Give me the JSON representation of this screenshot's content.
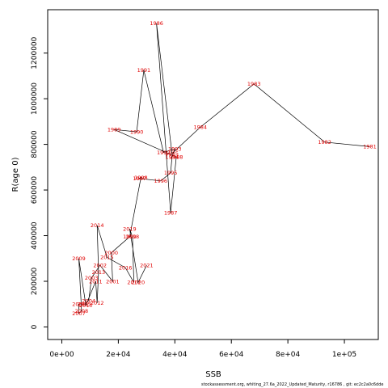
{
  "chart_data": {
    "type": "line",
    "xlabel": "SSB",
    "ylabel": "R(age 0)",
    "xlim": [
      -5000,
      112000
    ],
    "ylim": [
      -55000,
      1390000
    ],
    "xticks": [
      0,
      20000,
      40000,
      60000,
      80000,
      100000
    ],
    "xtick_labels": [
      "0e+00",
      "2e+04",
      "4e+04",
      "6e+04",
      "8e+04",
      "1e+05"
    ],
    "yticks": [
      0,
      200000,
      400000,
      600000,
      800000,
      1000000,
      1200000
    ],
    "ytick_labels": [
      "0",
      "200000",
      "400000",
      "600000",
      "800000",
      "1000000",
      "1200000"
    ],
    "grid": false,
    "line_color": "#000000",
    "label_color": "#e00000",
    "points": [
      {
        "year": "1981",
        "ssb": 109000,
        "r": 790000
      },
      {
        "year": "1982",
        "ssb": 93000,
        "r": 810000
      },
      {
        "year": "1983",
        "ssb": 68000,
        "r": 1065000
      },
      {
        "year": "1984",
        "ssb": 49000,
        "r": 875000
      },
      {
        "year": "1985",
        "ssb": 39000,
        "r": 760000
      },
      {
        "year": "1986",
        "ssb": 33500,
        "r": 1330000
      },
      {
        "year": "1987",
        "ssb": 38500,
        "r": 500000
      },
      {
        "year": "1988",
        "ssb": 40500,
        "r": 745000
      },
      {
        "year": "1989",
        "ssb": 18500,
        "r": 865000
      },
      {
        "year": "1990",
        "ssb": 26500,
        "r": 855000
      },
      {
        "year": "1991",
        "ssb": 29000,
        "r": 1125000
      },
      {
        "year": "1992",
        "ssb": 36000,
        "r": 765000
      },
      {
        "year": "1993",
        "ssb": 40000,
        "r": 780000
      },
      {
        "year": "1994",
        "ssb": 39000,
        "r": 745000
      },
      {
        "year": "1995",
        "ssb": 38500,
        "r": 675000
      },
      {
        "year": "1996",
        "ssb": 35000,
        "r": 640000
      },
      {
        "year": "1997",
        "ssb": 27500,
        "r": 650000
      },
      {
        "year": "1998",
        "ssb": 28000,
        "r": 655000
      },
      {
        "year": "1999",
        "ssb": 24000,
        "r": 395000
      },
      {
        "year": "2000",
        "ssb": 17500,
        "r": 325000
      },
      {
        "year": "2001",
        "ssb": 18000,
        "r": 200000
      },
      {
        "year": "2002",
        "ssb": 13500,
        "r": 270000
      },
      {
        "year": "2003",
        "ssb": 10500,
        "r": 215000
      },
      {
        "year": "2004",
        "ssb": 9500,
        "r": 115000
      },
      {
        "year": "2005",
        "ssb": 8000,
        "r": 100000
      },
      {
        "year": "2006",
        "ssb": 6000,
        "r": 100000
      },
      {
        "year": "2007",
        "ssb": 6000,
        "r": 60000
      },
      {
        "year": "2008",
        "ssb": 7000,
        "r": 70000
      },
      {
        "year": "2009",
        "ssb": 6000,
        "r": 300000
      },
      {
        "year": "2010",
        "ssb": 8500,
        "r": 95000
      },
      {
        "year": "2011",
        "ssb": 12000,
        "r": 200000
      },
      {
        "year": "2012",
        "ssb": 12500,
        "r": 105000
      },
      {
        "year": "2013",
        "ssb": 13000,
        "r": 240000
      },
      {
        "year": "2014",
        "ssb": 12500,
        "r": 445000
      },
      {
        "year": "2015",
        "ssb": 16000,
        "r": 305000
      },
      {
        "year": "2016",
        "ssb": 22500,
        "r": 260000
      },
      {
        "year": "2017",
        "ssb": 25500,
        "r": 195000
      },
      {
        "year": "2018",
        "ssb": 25000,
        "r": 395000
      },
      {
        "year": "2019",
        "ssb": 24000,
        "r": 430000
      },
      {
        "year": "2020",
        "ssb": 27000,
        "r": 195000
      },
      {
        "year": "2021",
        "ssb": 30000,
        "r": 270000
      }
    ]
  },
  "footer": "stockassessment.org, whiting_27.6a_2022_Updated_Maturity, r16786 , git: ec2c2a0c6dde"
}
